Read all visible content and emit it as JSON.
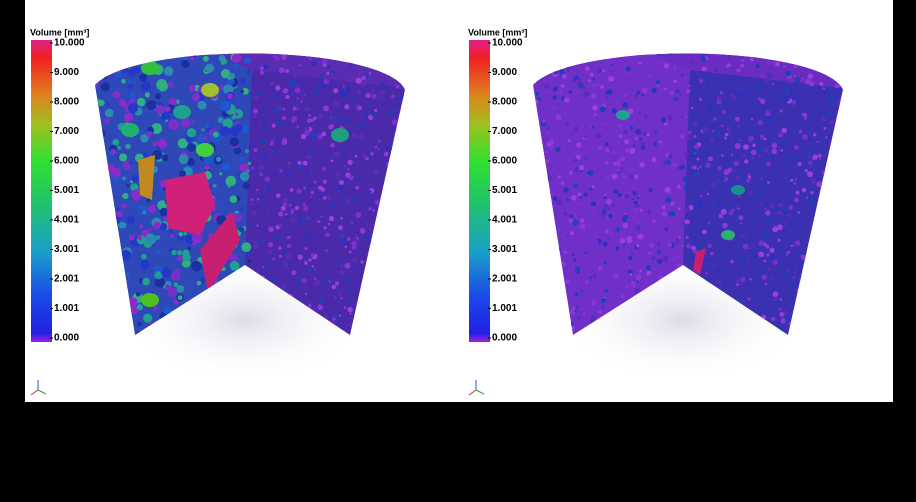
{
  "panels": [
    {
      "legend": {
        "title": "Volume [mm³]",
        "range": [
          0,
          10
        ],
        "ticks": [
          {
            "value": 10,
            "label": "10.000"
          },
          {
            "value": 9,
            "label": "9.000"
          },
          {
            "value": 8,
            "label": "8.000"
          },
          {
            "value": 7,
            "label": "7.000"
          },
          {
            "value": 6,
            "label": "6.000"
          },
          5.001,
          4.001,
          3.001,
          2.001,
          1.001,
          {
            "value": 0,
            "label": "0.000"
          }
        ]
      }
    },
    {
      "legend": {
        "title": "Volume [mm³]",
        "range": [
          0,
          10
        ],
        "ticks": [
          {
            "value": 10,
            "label": "10.000"
          },
          {
            "value": 9,
            "label": "9.000"
          },
          {
            "value": 8,
            "label": "8.000"
          },
          {
            "value": 7,
            "label": "7.000"
          },
          {
            "value": 6,
            "label": "6.000"
          },
          5.001,
          4.001,
          3.001,
          2.001,
          1.001,
          {
            "value": 0,
            "label": "0.000"
          }
        ]
      }
    }
  ]
}
